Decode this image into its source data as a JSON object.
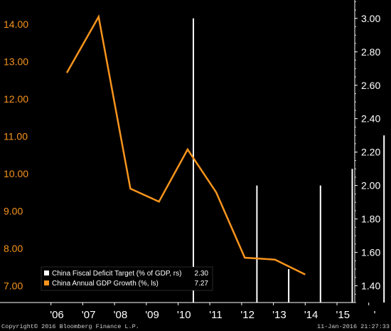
{
  "chart_data": {
    "type": "bar+line",
    "categories": [
      "'06",
      "'07",
      "'08",
      "'09",
      "'10",
      "'11",
      "'12",
      "'13",
      "'14",
      "'15",
      "'"
    ],
    "series": [
      {
        "name": "China Fiscal Deficit Target (% of GDP, rs)",
        "kind": "bar",
        "axis": "right",
        "color": "#ffffff",
        "last_value": "2.30",
        "values": [
          null,
          null,
          null,
          3.0,
          null,
          2.0,
          1.5,
          2.0,
          2.1,
          2.3,
          null
        ]
      },
      {
        "name": "China Annual GDP Growth (%, ls)",
        "kind": "line",
        "axis": "left",
        "color": "#f7941d",
        "last_value": "7.27",
        "x": [
          0.0,
          1.0,
          2.0,
          2.9,
          3.8,
          4.7,
          5.6,
          6.55,
          7.5
        ],
        "values": [
          12.7,
          14.2,
          9.6,
          9.25,
          10.65,
          9.5,
          7.75,
          7.7,
          7.3
        ]
      }
    ],
    "y_left": {
      "ticks": [
        "14.00",
        "13.00",
        "12.00",
        "11.00",
        "10.00",
        "9.00",
        "8.00",
        "7.00"
      ],
      "range": [
        6.55,
        14.65
      ]
    },
    "y_right": {
      "ticks": [
        "3.00",
        "2.80",
        "2.60",
        "2.40",
        "2.20",
        "2.00",
        "1.80",
        "1.60",
        "1.40"
      ],
      "range": [
        1.3,
        3.11
      ]
    },
    "legend_position": "bottom-left",
    "grid": false
  },
  "footer": {
    "copyright": "Copyright© 2016 Bloomberg Finance L.P.",
    "timestamp": "11-Jan-2016 21:27:33"
  }
}
